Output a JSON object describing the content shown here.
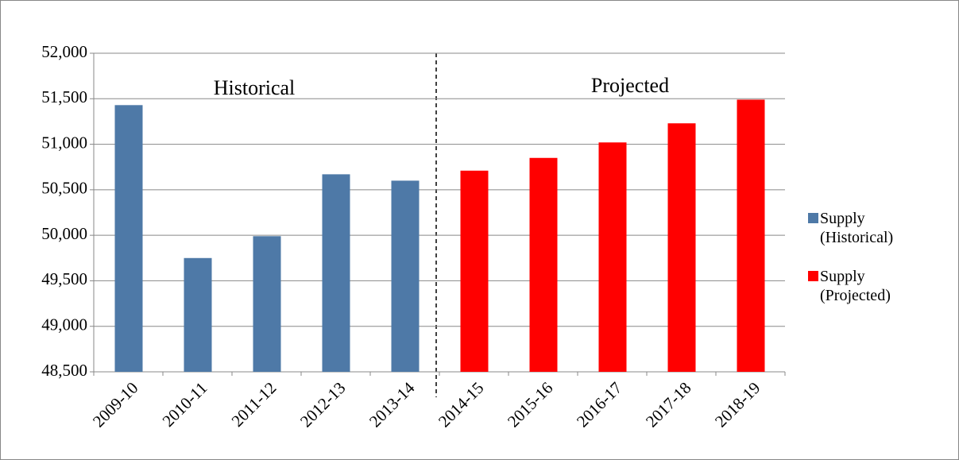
{
  "chart_data": {
    "type": "bar",
    "categories": [
      "2009-10",
      "2010-11",
      "2011-12",
      "2012-13",
      "2013-14",
      "2014-15",
      "2015-16",
      "2016-17",
      "2017-18",
      "2018-19"
    ],
    "series": [
      {
        "name": "Supply (Historical)",
        "color": "#4e79a7",
        "values": [
          51430,
          49750,
          49990,
          50670,
          50600,
          null,
          null,
          null,
          null,
          null
        ]
      },
      {
        "name": "Supply (Projected)",
        "color": "#ff0000",
        "values": [
          null,
          null,
          null,
          null,
          null,
          50710,
          50850,
          51020,
          51230,
          51490
        ]
      }
    ],
    "annotations": [
      "Historical",
      "Projected"
    ],
    "ylim": [
      48500,
      52000
    ],
    "yticks": [
      {
        "value": 48500,
        "label": "48,500"
      },
      {
        "value": 49000,
        "label": "49,000"
      },
      {
        "value": 49500,
        "label": "49,500"
      },
      {
        "value": 50000,
        "label": "50,000"
      },
      {
        "value": 50500,
        "label": "50,500"
      },
      {
        "value": 51000,
        "label": "51,000"
      },
      {
        "value": 51500,
        "label": "51,500"
      },
      {
        "value": 52000,
        "label": "52,000"
      }
    ],
    "grid": true,
    "legend": "right"
  }
}
